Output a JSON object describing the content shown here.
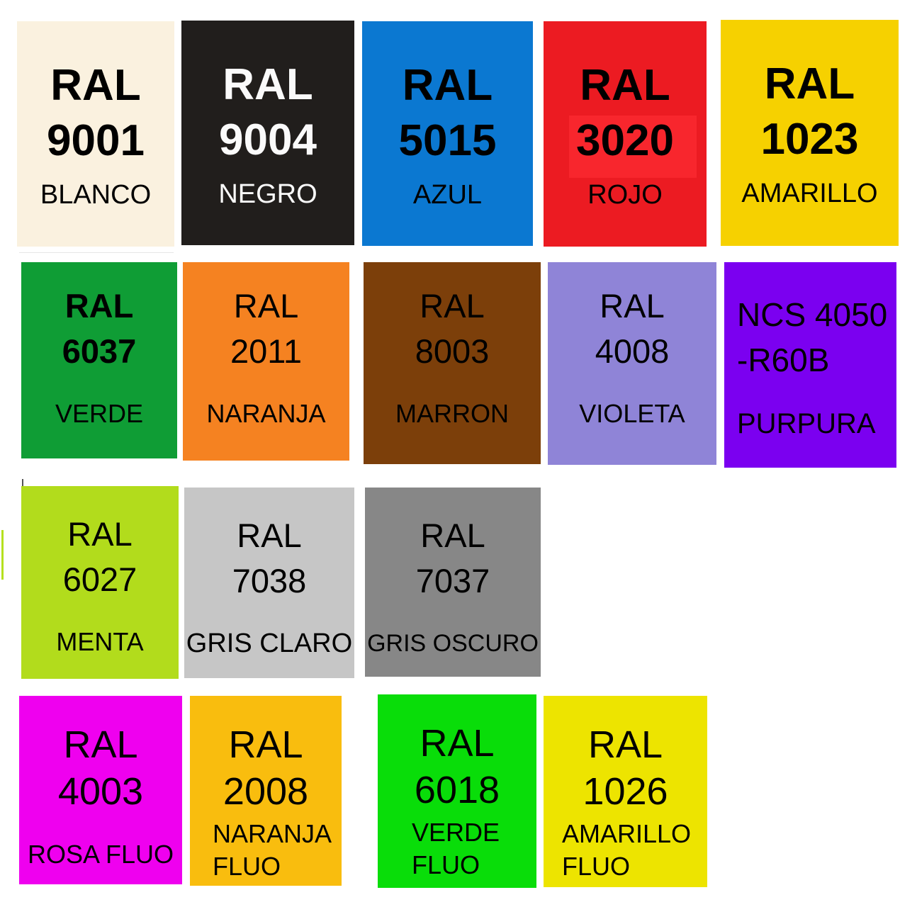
{
  "palette": {
    "swatches": [
      {
        "id": "ral-9001",
        "code_l1": "RAL",
        "code_l2": "9001",
        "name_l1": "BLANCO",
        "bg": "#faf1df",
        "fg": "#000000"
      },
      {
        "id": "ral-9004",
        "code_l1": "RAL",
        "code_l2": "9004",
        "name_l1": "NEGRO",
        "bg": "#211e1c",
        "fg": "#fafafa"
      },
      {
        "id": "ral-5015",
        "code_l1": "RAL",
        "code_l2": "5015",
        "name_l1": "AZUL",
        "bg": "#0b78d1",
        "fg": "#000000"
      },
      {
        "id": "ral-3020",
        "code_l1": "RAL",
        "code_l2": "3020",
        "name_l1": "ROJO",
        "bg": "#ec1b22",
        "fg": "#000000"
      },
      {
        "id": "ral-1023",
        "code_l1": "RAL",
        "code_l2": "1023",
        "name_l1": "AMARILLO",
        "bg": "#f6d100",
        "fg": "#000000"
      },
      {
        "id": "ral-6037",
        "code_l1": "RAL",
        "code_l2": "6037",
        "name_l1": "VERDE",
        "bg": "#0f9d35",
        "fg": "#000000"
      },
      {
        "id": "ral-2011",
        "code_l1": "RAL",
        "code_l2": "2011",
        "name_l1": "NARANJA",
        "bg": "#f58221",
        "fg": "#000000"
      },
      {
        "id": "ral-8003",
        "code_l1": "RAL",
        "code_l2": "8003",
        "name_l1": "MARRON",
        "bg": "#7c3f0a",
        "fg": "#000000"
      },
      {
        "id": "ral-4008",
        "code_l1": "RAL",
        "code_l2": "4008",
        "name_l1": "VIOLETA",
        "bg": "#8f84d7",
        "fg": "#000000"
      },
      {
        "id": "ncs-4050-r60b",
        "code_l1": "NCS 4050",
        "code_l2": "-R60B",
        "name_l1": "PURPURA",
        "bg": "#7b00f0",
        "fg": "#000000"
      },
      {
        "id": "ral-6027",
        "code_l1": "RAL",
        "code_l2": "6027",
        "name_l1": "MENTA",
        "bg": "#b2dc1c",
        "fg": "#000000"
      },
      {
        "id": "ral-7038",
        "code_l1": "RAL",
        "code_l2": "7038",
        "name_l1": "GRIS CLARO",
        "bg": "#c6c6c6",
        "fg": "#000000"
      },
      {
        "id": "ral-7037",
        "code_l1": "RAL",
        "code_l2": "7037",
        "name_l1": "GRIS OSCURO",
        "bg": "#878787",
        "fg": "#000000"
      },
      {
        "id": "ral-4003",
        "code_l1": "RAL",
        "code_l2": "4003",
        "name_l1": "ROSA FLUO",
        "bg": "#ef00ef",
        "fg": "#000000"
      },
      {
        "id": "ral-2008",
        "code_l1": "RAL",
        "code_l2": "2008",
        "name_l1": "NARANJA",
        "name_l2": "FLUO",
        "bg": "#f9bd0e",
        "fg": "#000000"
      },
      {
        "id": "ral-6018",
        "code_l1": "RAL",
        "code_l2": "6018",
        "name_l1": "VERDE",
        "name_l2": "FLUO",
        "bg": "#09dd09",
        "fg": "#000000"
      },
      {
        "id": "ral-1026",
        "code_l1": "RAL",
        "code_l2": "1026",
        "name_l1": "AMARILLO",
        "name_l2": "FLUO",
        "bg": "#ede400",
        "fg": "#000000"
      }
    ],
    "artifacts": {
      "red_inner_box_color": "#f8262d",
      "cream_underline_color": "#dcdcdc",
      "left_edge_line_color": "#b5e01e",
      "lime_top_tick_color": "#555555"
    }
  }
}
